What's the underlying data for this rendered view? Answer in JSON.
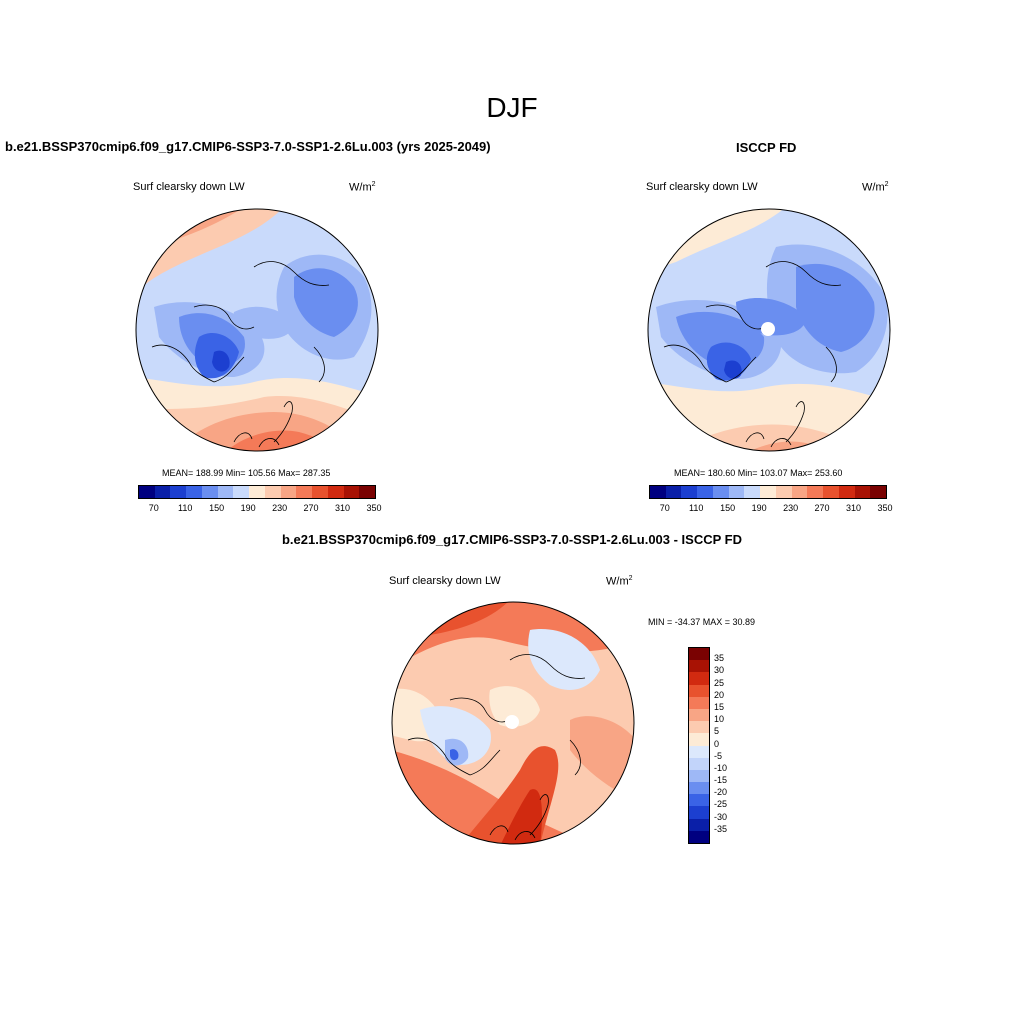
{
  "title": "DJF",
  "panels": {
    "model": {
      "title": "b.e21.BSSP370cmip6.f09_g17.CMIP6-SSP3-7.0-SSP1-2.6Lu.003 (yrs 2025-2049)",
      "label": "Surf clearsky down LW",
      "units": "W/m",
      "units_sup": "2",
      "stats": "MEAN= 188.99  Min= 105.56  Max= 287.35"
    },
    "obs": {
      "title": "ISCCP FD",
      "label": "Surf clearsky down LW",
      "units": "W/m",
      "units_sup": "2",
      "stats": "MEAN= 180.60  Min= 103.07  Max= 253.60"
    },
    "diff": {
      "title": "b.e21.BSSP370cmip6.f09_g17.CMIP6-SSP3-7.0-SSP1-2.6Lu.003 - ISCCP FD",
      "label": "Surf clearsky down LW",
      "units": "W/m",
      "units_sup": "2",
      "stats": "MIN = -34.37 MAX =  30.89"
    }
  },
  "colorbar_abs": {
    "colors": [
      "#000080",
      "#0A1FA8",
      "#1C3FD0",
      "#3A63E6",
      "#6A8EF0",
      "#9EB8F6",
      "#C9DAFB",
      "#FDEBD6",
      "#FCCBB0",
      "#F8A585",
      "#F47A58",
      "#E8522E",
      "#D12A10",
      "#A81204",
      "#7A0202"
    ],
    "labels": [
      "70",
      "110",
      "150",
      "190",
      "230",
      "270",
      "310",
      "350"
    ]
  },
  "colorbar_diff": {
    "colors": [
      "#7A0202",
      "#A81204",
      "#D12A10",
      "#E8522E",
      "#F47A58",
      "#F8A585",
      "#FCCBB0",
      "#FDEBD6",
      "#DCE8FC",
      "#C2D4FA",
      "#9EB8F6",
      "#6A8EF0",
      "#3A63E6",
      "#1C3FD0",
      "#0A1FA8",
      "#000080"
    ],
    "labels": [
      "35",
      "30",
      "25",
      "20",
      "15",
      "10",
      "5",
      "0",
      "-5",
      "-10",
      "-15",
      "-20",
      "-25",
      "-30",
      "-35"
    ]
  }
}
